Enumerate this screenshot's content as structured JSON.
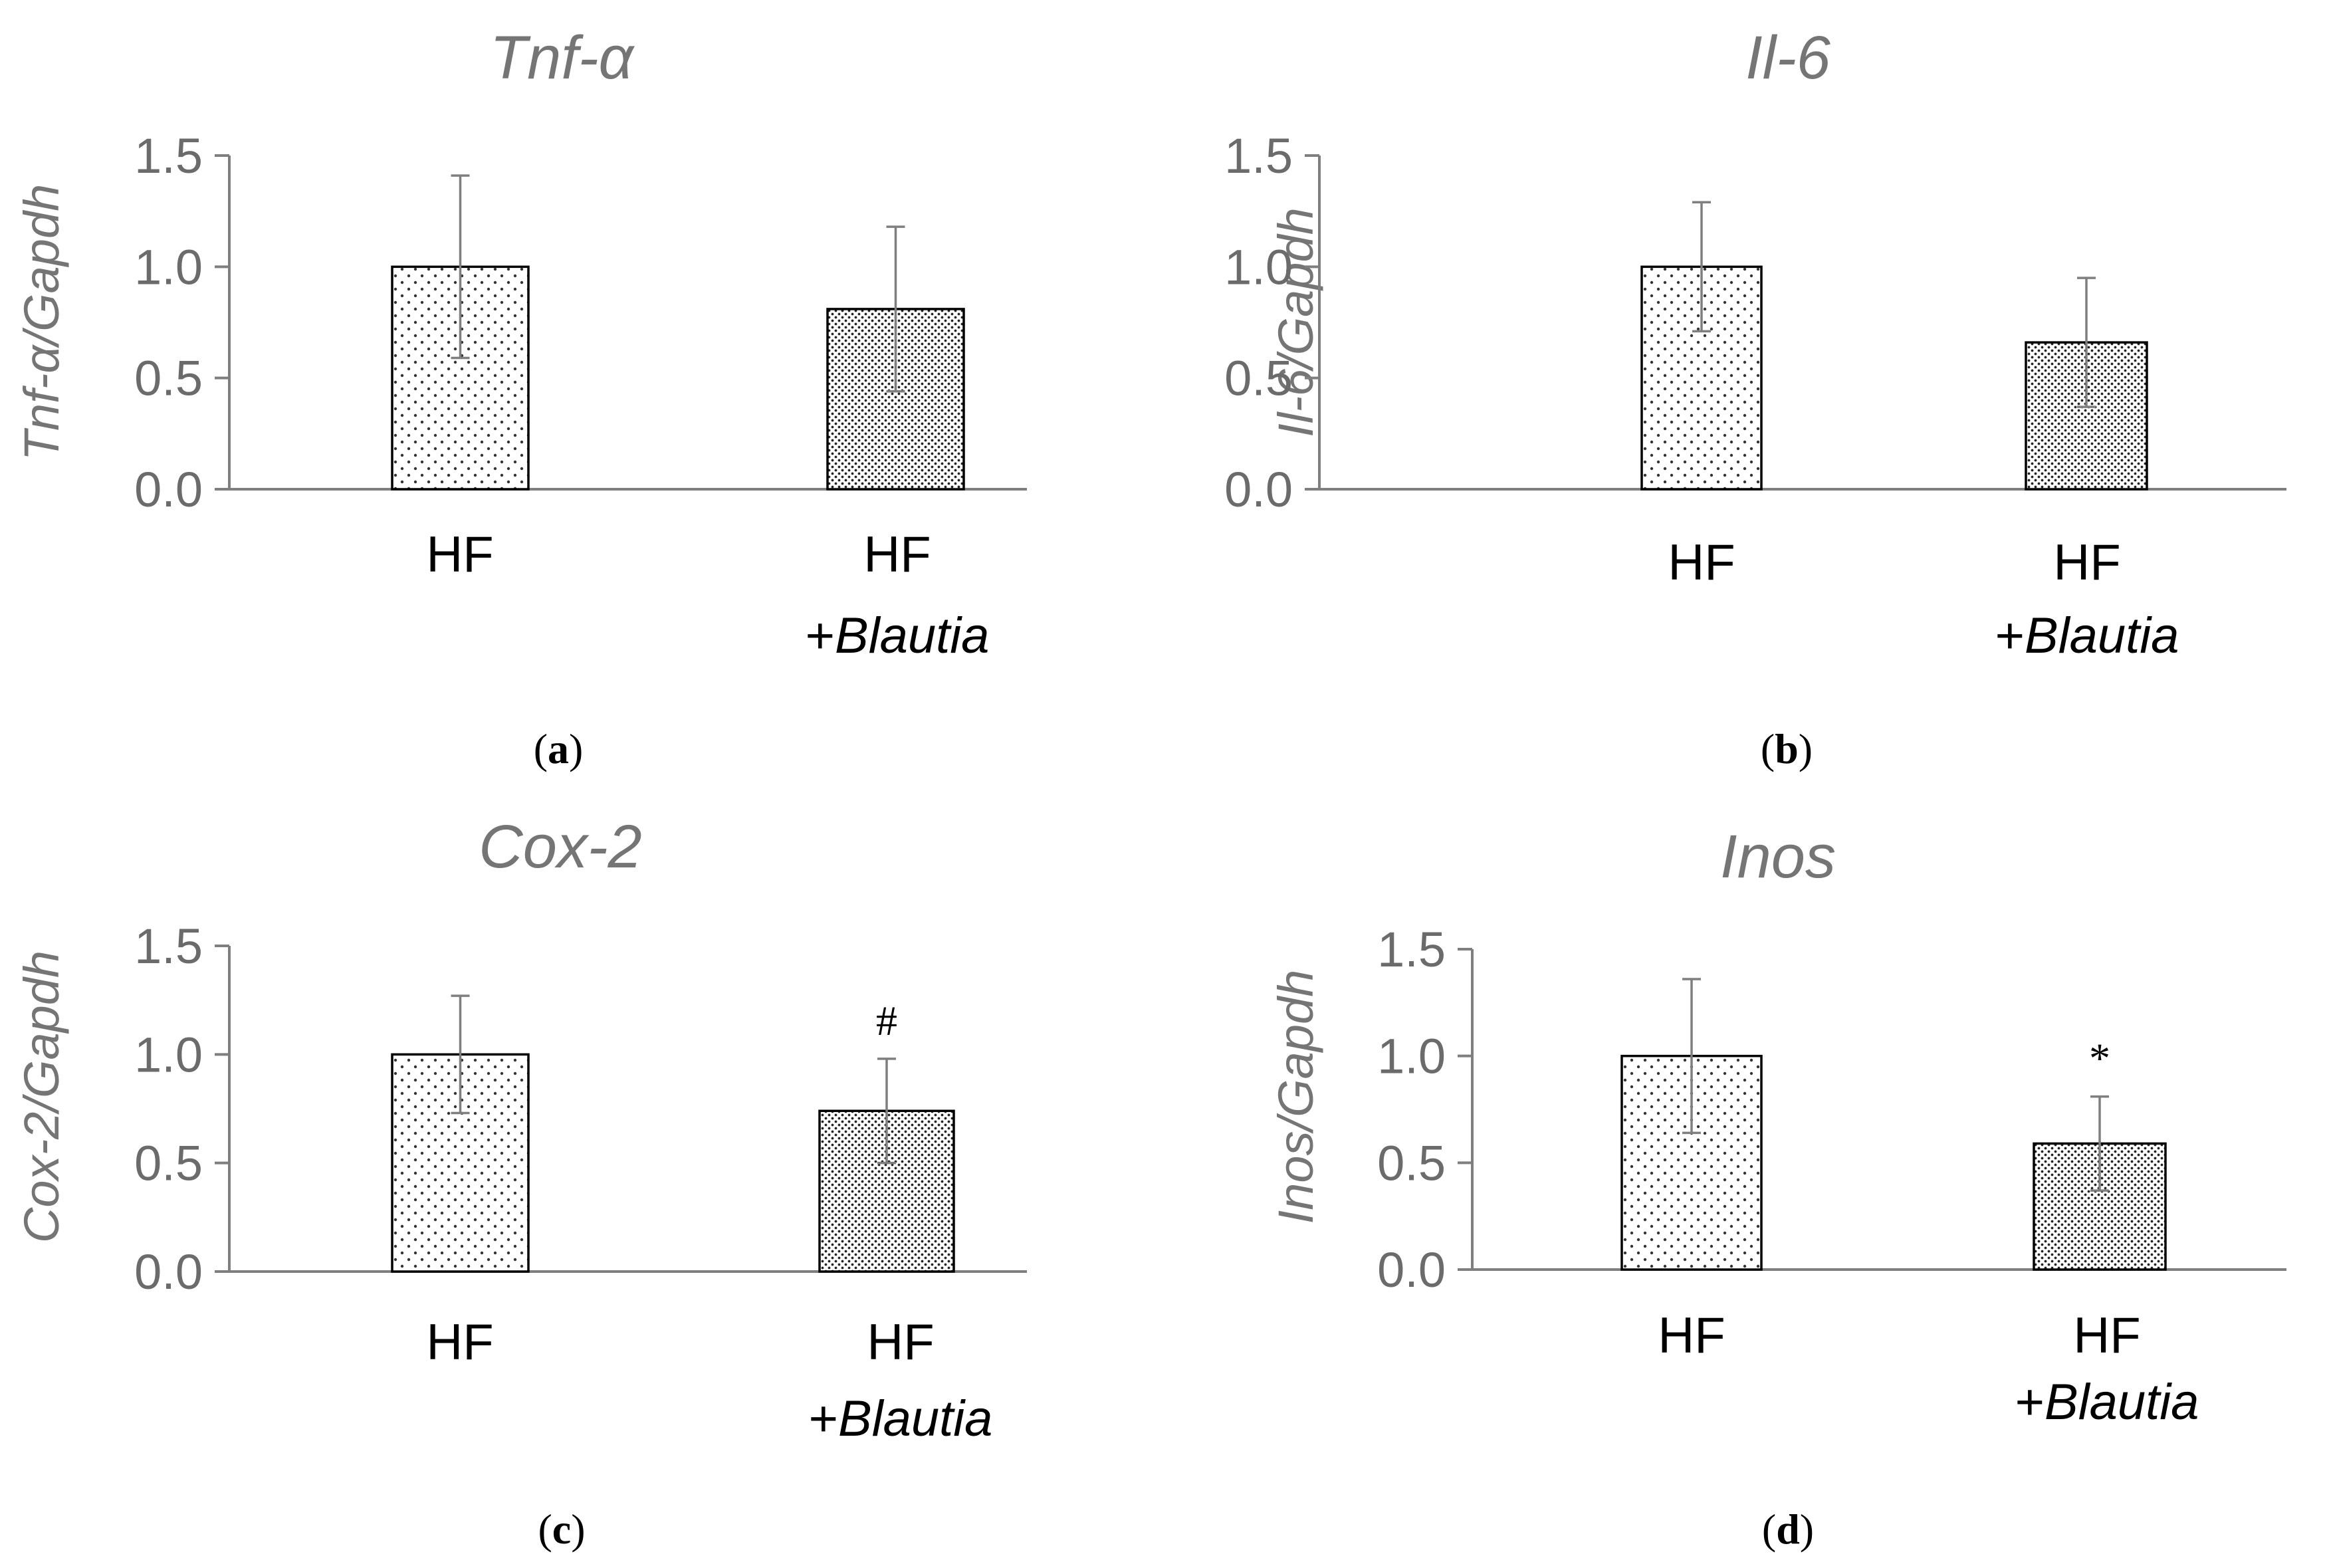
{
  "chart_data": [
    {
      "type": "bar",
      "panel_label": "a",
      "title": "Tnf-α",
      "ylabel": "Tnf-α/Gapdh",
      "ylim": [
        0,
        1.5
      ],
      "yticks": [
        "0.0",
        "0.5",
        "1.0",
        "1.5"
      ],
      "categories": [
        {
          "line1": "HF",
          "line2_plus": "",
          "line2_text": ""
        },
        {
          "line1": "HF",
          "line2_plus": "+",
          "line2_text": "Blautia"
        }
      ],
      "values": [
        1.0,
        0.81
      ],
      "errors": [
        0.41,
        0.37
      ],
      "annotations": [
        "",
        ""
      ]
    },
    {
      "type": "bar",
      "panel_label": "b",
      "title": "Il-6",
      "ylabel": "Il-6/Gapdh",
      "ylim": [
        0,
        1.5
      ],
      "yticks": [
        "0.0",
        "0.5",
        "1.0",
        "1.5"
      ],
      "categories": [
        {
          "line1": "HF",
          "line2_plus": "",
          "line2_text": ""
        },
        {
          "line1": "HF",
          "line2_plus": "+",
          "line2_text": "Blautia"
        }
      ],
      "values": [
        1.0,
        0.66
      ],
      "errors": [
        0.29,
        0.29
      ],
      "annotations": [
        "",
        ""
      ]
    },
    {
      "type": "bar",
      "panel_label": "c",
      "title": "Cox-2",
      "ylabel": "Cox-2/Gapdh",
      "ylim": [
        0,
        1.5
      ],
      "yticks": [
        "0.0",
        "0.5",
        "1.0",
        "1.5"
      ],
      "categories": [
        {
          "line1": "HF",
          "line2_plus": "",
          "line2_text": ""
        },
        {
          "line1": "HF",
          "line2_plus": "+",
          "line2_text": "Blautia"
        }
      ],
      "values": [
        1.0,
        0.74
      ],
      "errors": [
        0.27,
        0.24
      ],
      "annotations": [
        "",
        "#"
      ]
    },
    {
      "type": "bar",
      "panel_label": "d",
      "title": "Inos",
      "ylabel": "Inos/Gapdh",
      "ylim": [
        0,
        1.5
      ],
      "yticks": [
        "0.0",
        "0.5",
        "1.0",
        "1.5"
      ],
      "categories": [
        {
          "line1": "HF",
          "line2_plus": "",
          "line2_text": ""
        },
        {
          "line1": "HF",
          "line2_plus": "+",
          "line2_text": "Blautia"
        }
      ],
      "values": [
        1.0,
        0.59
      ],
      "errors": [
        0.36,
        0.22
      ],
      "annotations": [
        "",
        "*"
      ]
    }
  ],
  "colors": {
    "axis": "#7f7f7f",
    "bar_outline": "#000000",
    "bar_fill": "#ffffff",
    "dot_sparse": "#333333",
    "dot_dense": "#222222",
    "error_bar": "#7f7f7f"
  }
}
